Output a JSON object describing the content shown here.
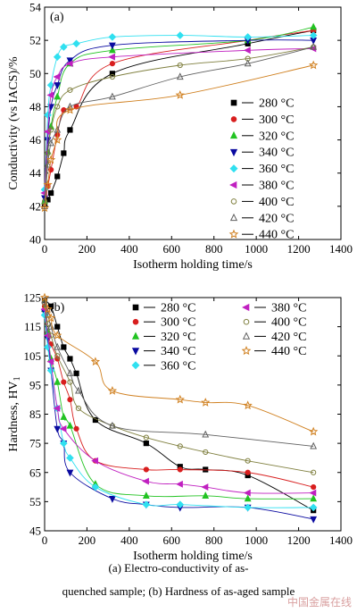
{
  "figure": {
    "caption_line1": "(a)  Electro-conductivity  of  as-",
    "caption_line2": "quenched sample; (b) Hardness of as-aged sample",
    "watermark": "中国金属在线"
  },
  "chart_data": [
    {
      "type": "scatter",
      "panel_label": "(a)",
      "xlabel": "Isotherm holding time/s",
      "ylabel": "Conductivity (vs IACS)/%",
      "xlim": [
        0,
        1400
      ],
      "ylim": [
        40,
        54
      ],
      "xticks": [
        0,
        200,
        400,
        600,
        800,
        1000,
        1200,
        1400
      ],
      "yticks": [
        40,
        42,
        44,
        46,
        48,
        50,
        52,
        54
      ],
      "legend_position": "right-middle",
      "series": [
        {
          "name": "280 °C",
          "marker": "square",
          "color": "#000000",
          "x": [
            0,
            15,
            30,
            60,
            90,
            120,
            320,
            960,
            1270
          ],
          "y": [
            42.1,
            42.4,
            42.8,
            43.8,
            45.2,
            46.6,
            50.0,
            51.8,
            52.6
          ]
        },
        {
          "name": "300 °C",
          "marker": "circle",
          "color": "#d81e1e",
          "x": [
            0,
            15,
            30,
            60,
            90,
            150,
            320,
            960,
            1270
          ],
          "y": [
            42.2,
            43.2,
            44.2,
            46.3,
            47.8,
            48.0,
            50.6,
            52.0,
            52.6
          ]
        },
        {
          "name": "320 °C",
          "marker": "triangle-up",
          "color": "#22c322",
          "x": [
            0,
            15,
            30,
            60,
            120,
            320,
            960,
            1270
          ],
          "y": [
            42.3,
            45.3,
            46.8,
            48.6,
            50.6,
            51.4,
            52.0,
            52.8
          ]
        },
        {
          "name": "340 °C",
          "marker": "triangle-down",
          "color": "#0a0aa0",
          "x": [
            0,
            15,
            30,
            60,
            120,
            320,
            960,
            1270
          ],
          "y": [
            42.5,
            46.0,
            48.0,
            49.3,
            50.8,
            51.7,
            52.0,
            52.0
          ]
        },
        {
          "name": "360 °C",
          "marker": "diamond",
          "color": "#30e0f0",
          "x": [
            0,
            15,
            30,
            60,
            90,
            150,
            320,
            640,
            960,
            1270
          ],
          "y": [
            43.0,
            47.5,
            49.3,
            51.0,
            51.6,
            51.8,
            52.2,
            52.3,
            52.2,
            52.3
          ]
        },
        {
          "name": "380 °C",
          "marker": "triangle-left",
          "color": "#c020c0",
          "x": [
            0,
            15,
            30,
            60,
            120,
            320,
            960,
            1270
          ],
          "y": [
            42.8,
            46.5,
            48.7,
            49.8,
            50.6,
            51.0,
            51.4,
            51.5
          ]
        },
        {
          "name": "400 °C",
          "marker": "circle-open",
          "color": "#808040",
          "x": [
            0,
            15,
            30,
            60,
            120,
            320,
            640,
            960,
            1270
          ],
          "y": [
            42.3,
            45.2,
            46.6,
            48.0,
            49.0,
            49.8,
            50.5,
            50.9,
            51.6
          ]
        },
        {
          "name": "420 °C",
          "marker": "triangle-open",
          "color": "#606060",
          "x": [
            0,
            15,
            30,
            60,
            120,
            320,
            640,
            960,
            1270
          ],
          "y": [
            42.0,
            44.5,
            45.8,
            46.6,
            48.0,
            48.6,
            49.8,
            50.6,
            51.6
          ]
        },
        {
          "name": "440 °C",
          "marker": "star-open",
          "color": "#d08020",
          "x": [
            0,
            15,
            30,
            60,
            120,
            640,
            1270
          ],
          "y": [
            41.9,
            43.3,
            44.8,
            46.0,
            47.8,
            48.7,
            50.5
          ]
        }
      ]
    },
    {
      "type": "scatter",
      "panel_label": "(b)",
      "xlabel": "Isotherm holding time/s",
      "ylabel": "Hardness, HV1",
      "ylabel_main": "Hardness, HV",
      "ylabel_sub": "1",
      "xlim": [
        0,
        1400
      ],
      "ylim": [
        45,
        125
      ],
      "xticks": [
        0,
        200,
        400,
        600,
        800,
        1000,
        1200,
        1400
      ],
      "yticks": [
        45,
        55,
        65,
        75,
        85,
        95,
        105,
        115,
        125
      ],
      "legend_position": "top",
      "series": [
        {
          "name": "280 °C",
          "marker": "square",
          "color": "#000000",
          "x": [
            0,
            30,
            60,
            90,
            120,
            150,
            240,
            480,
            640,
            760,
            960,
            1270
          ],
          "y": [
            124,
            122,
            115,
            108,
            104,
            99,
            83,
            75,
            67,
            66,
            64,
            52
          ]
        },
        {
          "name": "300 °C",
          "marker": "circle",
          "color": "#d81e1e",
          "x": [
            0,
            15,
            30,
            60,
            90,
            120,
            150,
            240,
            480,
            640,
            960,
            1270
          ],
          "y": [
            122,
            113,
            109,
            104,
            96,
            90,
            80,
            69,
            66,
            66,
            65,
            60
          ]
        },
        {
          "name": "320 °C",
          "marker": "triangle-up",
          "color": "#22c322",
          "x": [
            0,
            15,
            30,
            60,
            90,
            120,
            240,
            480,
            760,
            960,
            1270
          ],
          "y": [
            121,
            113,
            104,
            96,
            84,
            81,
            61,
            57,
            57,
            56,
            56
          ]
        },
        {
          "name": "340 °C",
          "marker": "triangle-down",
          "color": "#0a0aa0",
          "x": [
            0,
            15,
            30,
            60,
            90,
            120,
            320,
            480,
            640,
            960,
            1270
          ],
          "y": [
            120,
            111,
            100,
            80,
            75,
            65,
            56,
            54,
            53,
            53,
            49
          ]
        },
        {
          "name": "360 °C",
          "marker": "diamond",
          "color": "#30e0f0",
          "x": [
            0,
            15,
            30,
            60,
            90,
            120,
            240,
            480,
            640,
            960,
            1270
          ],
          "y": [
            119,
            108,
            100,
            87,
            75,
            70,
            60,
            54,
            54,
            53,
            53
          ]
        },
        {
          "name": "380 °C",
          "marker": "triangle-left",
          "color": "#c020c0",
          "x": [
            0,
            15,
            30,
            60,
            90,
            240,
            480,
            640,
            760,
            960,
            1270
          ],
          "y": [
            121,
            112,
            103,
            87,
            80,
            69,
            62,
            61,
            60,
            58,
            58
          ]
        },
        {
          "name": "400 °C",
          "marker": "circle-open",
          "color": "#808040",
          "x": [
            0,
            15,
            30,
            60,
            120,
            160,
            320,
            480,
            640,
            760,
            960,
            1270
          ],
          "y": [
            123,
            116,
            112,
            105,
            96,
            87,
            81,
            77,
            74,
            72,
            69,
            65
          ]
        },
        {
          "name": "420 °C",
          "marker": "triangle-open",
          "color": "#606060",
          "x": [
            0,
            15,
            30,
            60,
            120,
            160,
            320,
            760,
            1270
          ],
          "y": [
            124,
            119,
            115,
            108,
            99,
            93,
            81,
            78,
            74
          ]
        },
        {
          "name": "440 °C",
          "marker": "star-open",
          "color": "#d08020",
          "x": [
            0,
            15,
            30,
            60,
            240,
            320,
            640,
            760,
            960,
            1270
          ],
          "y": [
            125,
            121,
            118,
            112,
            103,
            93,
            90,
            89,
            88,
            79
          ]
        }
      ]
    }
  ]
}
